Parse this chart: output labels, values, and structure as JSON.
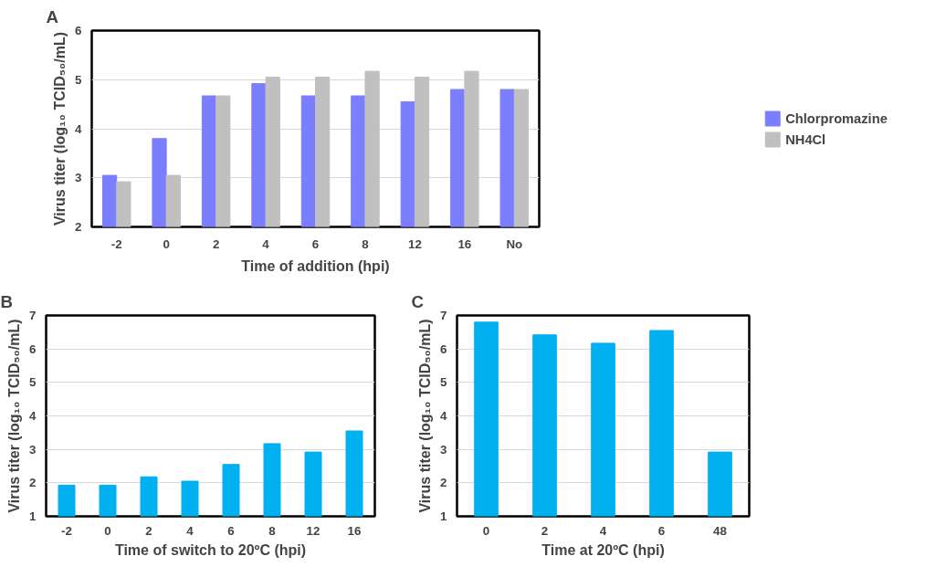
{
  "chart_data": [
    {
      "type": "bar",
      "title": "A",
      "xlabel": "Time of addition (hpi)",
      "ylabel": "Virus titer (log₁₀ TCID₅₀/mL)",
      "categories": [
        "-2",
        "0",
        "2",
        "4",
        "6",
        "8",
        "12",
        "16",
        "No"
      ],
      "ylim": [
        2,
        6
      ],
      "yticks": [
        2,
        3,
        4,
        5,
        6
      ],
      "grid": "y",
      "legend": "right",
      "series": [
        {
          "name": "Chlorpromazine",
          "color": "#7b7fff",
          "values": [
            3.05,
            3.8,
            4.67,
            4.92,
            4.67,
            4.67,
            4.55,
            4.8,
            4.8
          ]
        },
        {
          "name": "NH4Cl",
          "color": "#c0c0c0",
          "values": [
            2.92,
            3.05,
            4.67,
            5.05,
            5.05,
            5.17,
            5.05,
            5.17,
            4.8
          ]
        }
      ]
    },
    {
      "type": "bar",
      "title": "B",
      "xlabel": "Time of switch to 20ºC (hpi)",
      "ylabel": "Virus titer (log₁₀ TCID₅₀/mL)",
      "categories": [
        "-2",
        "0",
        "2",
        "4",
        "6",
        "8",
        "12",
        "16"
      ],
      "ylim": [
        1,
        7
      ],
      "yticks": [
        1,
        2,
        3,
        4,
        5,
        6,
        7
      ],
      "grid": "y",
      "series": [
        {
          "color": "#00b0f0",
          "values": [
            1.93,
            1.93,
            2.18,
            2.05,
            2.55,
            3.17,
            2.92,
            3.55
          ]
        }
      ]
    },
    {
      "type": "bar",
      "title": "C",
      "xlabel": "Time at 20ºC (hpi)",
      "ylabel": "Virus titer (log₁₀ TCID₅₀/mL)",
      "categories": [
        "0",
        "2",
        "4",
        "6",
        "48"
      ],
      "ylim": [
        1,
        7
      ],
      "yticks": [
        1,
        2,
        3,
        4,
        5,
        6,
        7
      ],
      "grid": "y",
      "series": [
        {
          "color": "#00b0f0",
          "values": [
            6.8,
            6.42,
            6.17,
            6.55,
            2.92
          ]
        }
      ]
    }
  ]
}
